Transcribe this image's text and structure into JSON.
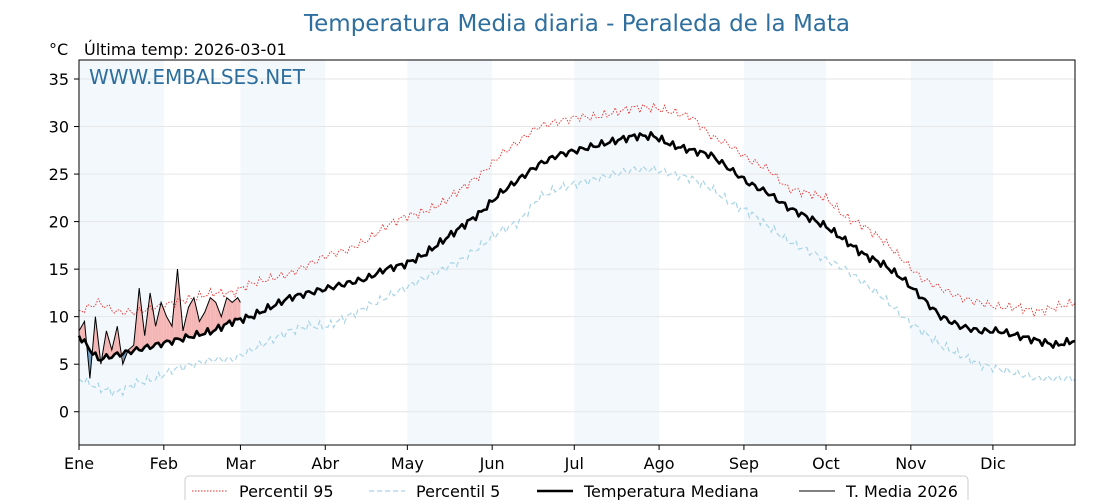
{
  "chart_data": {
    "type": "line",
    "title": "Temperatura Media diaria - Peraleda de la Mata",
    "unit_label": "°C",
    "last_date_label": "Última temp: 2026-03-01",
    "watermark": "WWW.EMBALSES.NET",
    "x_categories": [
      "Ene",
      "Feb",
      "Mar",
      "Abr",
      "May",
      "Jun",
      "Jul",
      "Ago",
      "Sep",
      "Oct",
      "Nov",
      "Dic"
    ],
    "ylim": [
      -3.5,
      37
    ],
    "yticks": [
      0,
      5,
      10,
      15,
      20,
      25,
      30,
      35
    ],
    "grid": true,
    "legend_position": "bottom",
    "series": [
      {
        "name": "Percentil 95",
        "color": "#e8302a",
        "style": "dotted",
        "x": [
          1,
          8,
          15,
          22,
          29,
          36,
          43,
          50,
          57,
          64,
          71,
          78,
          85,
          92,
          99,
          106,
          113,
          120,
          127,
          134,
          141,
          148,
          155,
          162,
          169,
          176,
          183,
          190,
          197,
          204,
          211,
          218,
          225,
          232,
          239,
          246,
          253,
          260,
          267,
          274,
          281,
          288,
          295,
          302,
          309,
          316,
          323,
          330,
          337,
          344,
          351,
          358,
          365
        ],
        "y": [
          10.5,
          11.5,
          10.5,
          10.5,
          11,
          11.5,
          12,
          12.5,
          12.5,
          13.5,
          14,
          14.5,
          15.5,
          16.5,
          17,
          18,
          19.5,
          20.5,
          21,
          22,
          23.5,
          25,
          27,
          28.5,
          30,
          30.5,
          31,
          31,
          31.5,
          32,
          32,
          31.5,
          31,
          29,
          28,
          26.5,
          25.5,
          23.5,
          23,
          22.5,
          20.5,
          19.5,
          18,
          16,
          14,
          13,
          12,
          11.5,
          11,
          11,
          10.5,
          11,
          11.5
        ]
      },
      {
        "name": "Percentil 5",
        "color": "#a8d4e6",
        "style": "dashed",
        "x": [
          1,
          8,
          15,
          22,
          29,
          36,
          43,
          50,
          57,
          64,
          71,
          78,
          85,
          92,
          99,
          106,
          113,
          120,
          127,
          134,
          141,
          148,
          155,
          162,
          169,
          176,
          183,
          190,
          197,
          204,
          211,
          218,
          225,
          232,
          239,
          246,
          253,
          260,
          267,
          274,
          281,
          288,
          295,
          302,
          309,
          316,
          323,
          330,
          337,
          344,
          351,
          358,
          365
        ],
        "y": [
          3.5,
          2.5,
          2,
          3,
          3.5,
          4.5,
          5,
          5.5,
          5.5,
          6.5,
          7.5,
          8.5,
          9,
          9,
          10,
          11,
          12,
          13,
          14,
          15,
          16,
          17.5,
          19,
          20,
          22.5,
          23.5,
          24,
          24.5,
          25,
          25.5,
          25.5,
          25,
          24.5,
          23.5,
          22,
          21,
          19.5,
          18,
          17,
          16,
          15,
          13.5,
          12,
          10,
          8.5,
          7,
          6,
          5,
          4.5,
          4,
          3.5,
          3.5,
          3.5
        ]
      },
      {
        "name": "Temperatura Mediana",
        "color": "#000000",
        "style": "solid-bold",
        "x": [
          1,
          8,
          15,
          22,
          29,
          36,
          43,
          50,
          57,
          64,
          71,
          78,
          85,
          92,
          99,
          106,
          113,
          120,
          127,
          134,
          141,
          148,
          155,
          162,
          169,
          176,
          183,
          190,
          197,
          204,
          211,
          218,
          225,
          232,
          239,
          246,
          253,
          260,
          267,
          274,
          281,
          288,
          295,
          302,
          309,
          316,
          323,
          330,
          337,
          344,
          351,
          358,
          365
        ],
        "y": [
          8,
          5.5,
          6,
          6.5,
          7,
          7.5,
          8,
          8.5,
          9.5,
          10,
          11,
          12,
          12.5,
          13,
          13.5,
          14,
          15,
          15.5,
          16.5,
          18,
          19.5,
          21,
          23,
          24.5,
          26,
          27,
          27.5,
          28,
          28.5,
          29,
          29,
          28,
          27.5,
          27,
          25.5,
          24,
          23,
          21.5,
          20.5,
          19.5,
          18,
          16.5,
          15.5,
          14,
          12,
          10,
          9,
          8.5,
          8.5,
          8,
          7.5,
          7,
          7.5
        ]
      },
      {
        "name": "T. Media 2026",
        "color": "#000000",
        "style": "solid-thin",
        "x": [
          1,
          3,
          5,
          7,
          9,
          11,
          13,
          15,
          17,
          19,
          21,
          23,
          25,
          27,
          29,
          31,
          33,
          35,
          37,
          39,
          41,
          43,
          45,
          47,
          49,
          51,
          53,
          55,
          57,
          59,
          60
        ],
        "y": [
          8.5,
          9.5,
          3.5,
          10,
          5,
          8.5,
          6.5,
          9,
          5,
          6.5,
          7,
          13,
          8,
          12.5,
          9,
          11.5,
          10,
          9,
          15,
          8.5,
          11,
          12,
          9.5,
          10.5,
          12,
          11.5,
          10,
          12,
          11.5,
          12,
          11.5
        ]
      }
    ],
    "fill_above_median_color": "#f4b6b4",
    "fill_below_median_color": "#6f9ec4"
  }
}
